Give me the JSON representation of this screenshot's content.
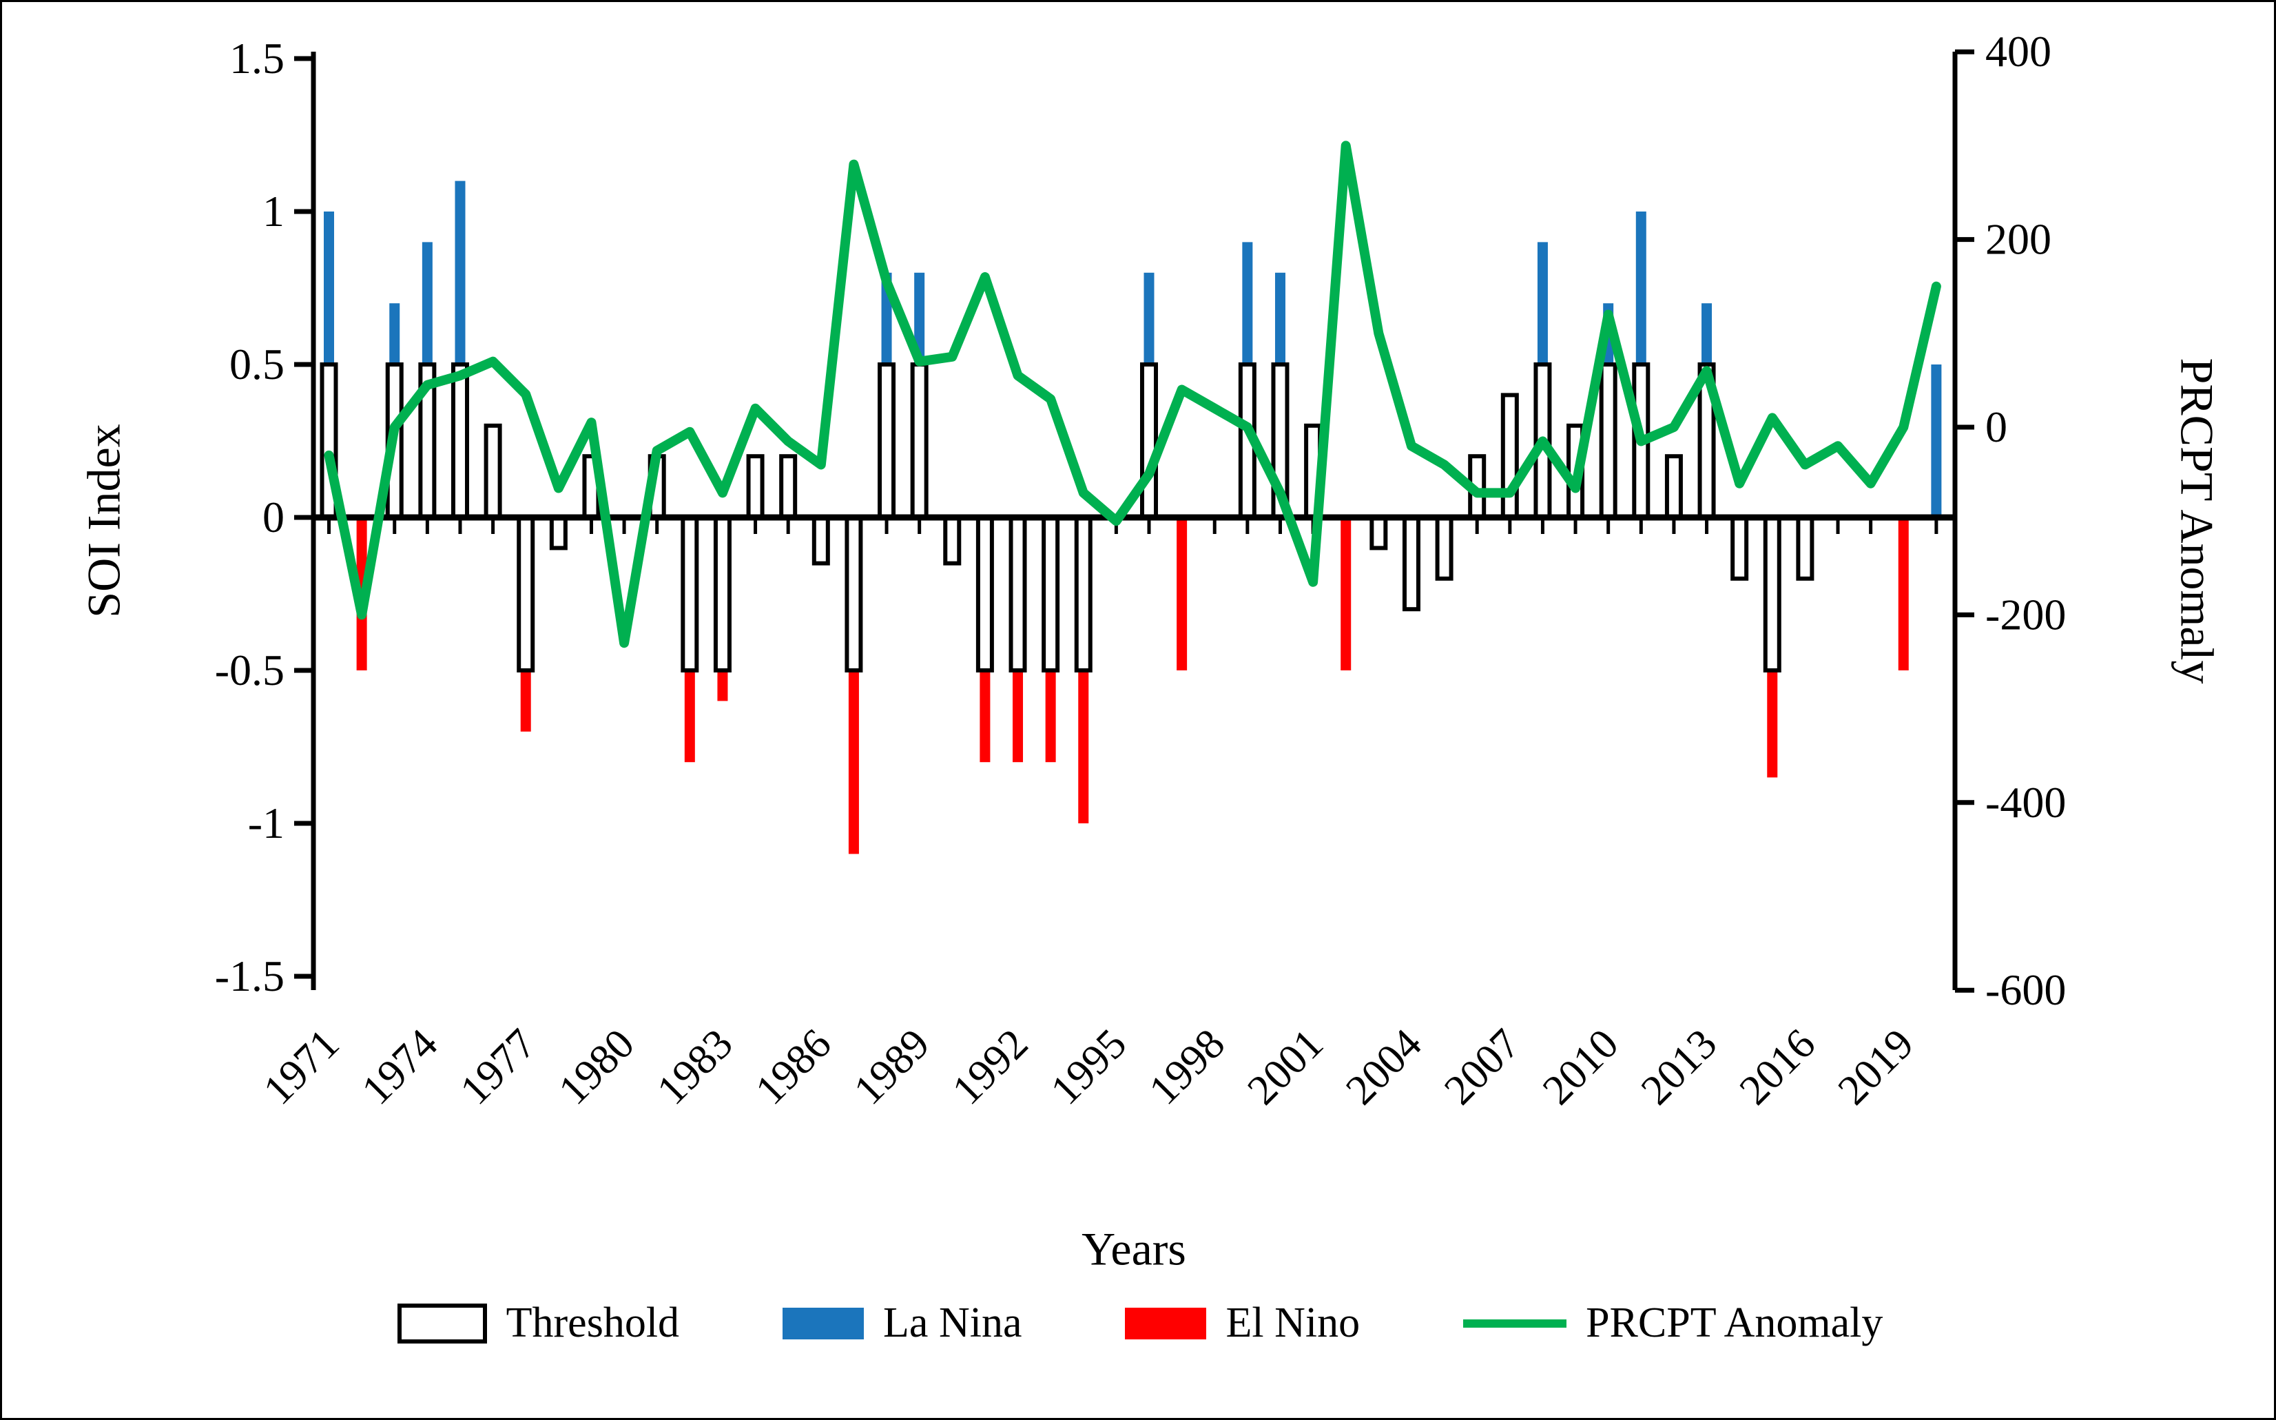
{
  "chart_data": {
    "type": "combo-bar-line",
    "title": "",
    "xlabel": "Years",
    "categories": [
      1971,
      1972,
      1973,
      1974,
      1975,
      1976,
      1977,
      1978,
      1979,
      1980,
      1981,
      1982,
      1983,
      1984,
      1985,
      1986,
      1987,
      1988,
      1989,
      1990,
      1991,
      1992,
      1993,
      1994,
      1995,
      1996,
      1997,
      1998,
      1999,
      2000,
      2001,
      2002,
      2003,
      2004,
      2005,
      2006,
      2007,
      2008,
      2009,
      2010,
      2011,
      2012,
      2013,
      2014,
      2015,
      2016,
      2017,
      2018,
      2019,
      2020
    ],
    "x_tick_labels": [
      "1971",
      "1974",
      "1977",
      "1980",
      "1983",
      "1986",
      "1989",
      "1992",
      "1995",
      "1998",
      "2001",
      "2004",
      "2007",
      "2010",
      "2013",
      "2016",
      "2019"
    ],
    "soi_axis": {
      "title": "SOI Index",
      "range": [
        -1.5,
        1.5
      ],
      "ticks": [
        {
          "label": "1.5",
          "v": 1.5
        },
        {
          "label": "1",
          "v": 1.0
        },
        {
          "label": "0.5",
          "v": 0.5
        },
        {
          "label": "0",
          "v": 0.0
        },
        {
          "label": "-0.5",
          "v": -0.5
        },
        {
          "label": "-1",
          "v": -1.0
        },
        {
          "label": "-1.5",
          "v": -1.5
        }
      ]
    },
    "prcpt_axis": {
      "title": "PRCPT Anomaly",
      "range": [
        -600,
        400
      ],
      "ticks": [
        {
          "label": "400",
          "v": 400
        },
        {
          "label": "200",
          "v": 200
        },
        {
          "label": "0",
          "v": 0
        },
        {
          "label": "-200",
          "v": -200
        },
        {
          "label": "-400",
          "v": -400
        },
        {
          "label": "-600",
          "v": -600
        }
      ]
    },
    "series": {
      "threshold": [
        0.5,
        null,
        0.5,
        0.5,
        0.5,
        0.3,
        -0.5,
        -0.1,
        0.2,
        null,
        0.2,
        -0.5,
        -0.5,
        0.2,
        0.2,
        -0.15,
        -0.5,
        0.5,
        0.5,
        -0.15,
        -0.5,
        -0.5,
        -0.5,
        -0.5,
        null,
        0.5,
        null,
        null,
        0.5,
        0.5,
        0.3,
        null,
        -0.1,
        -0.3,
        -0.2,
        0.2,
        0.4,
        0.5,
        0.3,
        0.5,
        0.5,
        0.2,
        0.5,
        -0.2,
        -0.5,
        -0.2,
        null,
        null,
        null,
        null
      ],
      "la_nina": [
        1.0,
        null,
        0.7,
        0.9,
        1.1,
        null,
        null,
        null,
        null,
        null,
        null,
        null,
        null,
        null,
        null,
        null,
        null,
        0.8,
        0.8,
        null,
        null,
        null,
        null,
        null,
        null,
        0.8,
        null,
        null,
        0.9,
        0.8,
        null,
        null,
        null,
        null,
        null,
        null,
        null,
        0.9,
        null,
        0.7,
        1.0,
        null,
        0.7,
        null,
        null,
        null,
        null,
        null,
        null,
        0.5
      ],
      "el_nino": [
        null,
        -0.5,
        null,
        null,
        null,
        null,
        -0.7,
        null,
        null,
        null,
        null,
        -0.8,
        -0.6,
        null,
        null,
        null,
        -1.1,
        null,
        null,
        null,
        -0.8,
        -0.8,
        -0.8,
        -1.0,
        null,
        null,
        -0.5,
        null,
        null,
        null,
        null,
        -0.5,
        null,
        null,
        null,
        null,
        null,
        null,
        null,
        null,
        null,
        null,
        null,
        null,
        -0.85,
        null,
        null,
        null,
        -0.5,
        null
      ],
      "prcpt_anomaly": [
        -30,
        -200,
        0,
        45,
        55,
        70,
        35,
        -65,
        5,
        -230,
        -25,
        -5,
        -70,
        20,
        -15,
        -40,
        280,
        155,
        70,
        75,
        160,
        55,
        30,
        -70,
        -100,
        -50,
        40,
        20,
        0,
        -70,
        -165,
        300,
        100,
        -20,
        -40,
        -70,
        -70,
        -15,
        -65,
        120,
        -15,
        0,
        60,
        -60,
        10,
        -40,
        -20,
        -60,
        0,
        150
      ]
    },
    "colors": {
      "la_nina": "#1B75BC",
      "el_nino": "#FF0000",
      "prcpt": "#00B050",
      "threshold_fill": "#FFFFFF",
      "axis": "#000000"
    },
    "legend": [
      {
        "label": "Threshold",
        "swatch": "outline"
      },
      {
        "label": "La Nina",
        "swatch": "la_nina"
      },
      {
        "label": "El Nino",
        "swatch": "el_nino"
      },
      {
        "label": "PRCPT Anomaly",
        "swatch": "line"
      }
    ]
  }
}
